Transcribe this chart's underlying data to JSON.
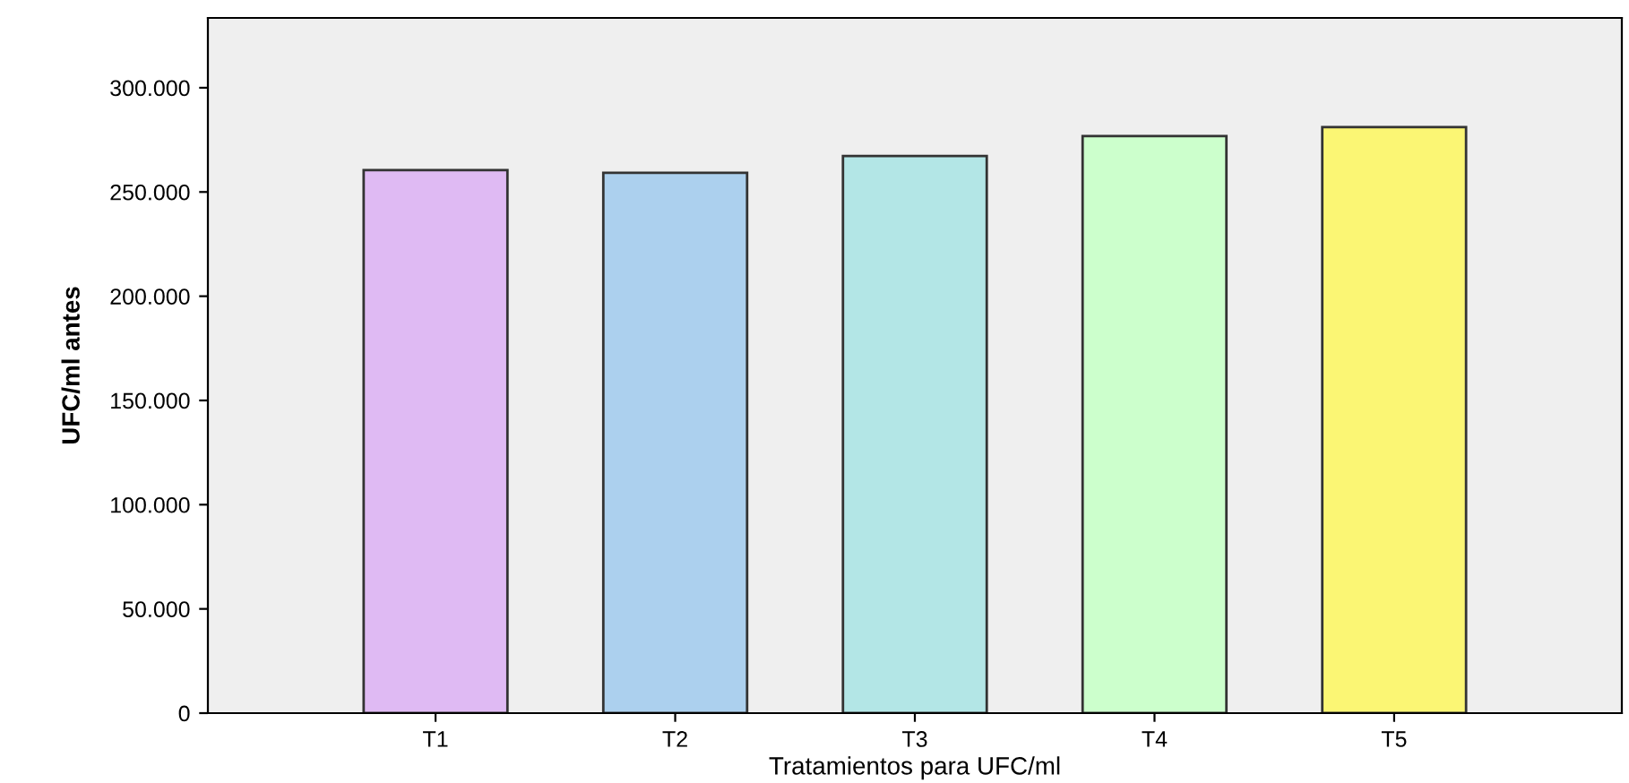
{
  "chart_data": {
    "type": "bar",
    "xlabel": "Tratamientos para UFC/ml",
    "ylabel": "UFC/ml antes",
    "categories": [
      "T1",
      "T2",
      "T3",
      "T4",
      "T5"
    ],
    "values": [
      260500,
      259200,
      267300,
      276800,
      281100
    ],
    "colors": [
      "#dfbaf3",
      "#acd0ee",
      "#b3e6e6",
      "#ccffcc",
      "#fbf674"
    ],
    "ylim": [
      0,
      333500
    ],
    "yticks": [
      0,
      {
        "value": 50000,
        "label": "50.000"
      },
      {
        "value": 100000,
        "label": "100.000"
      },
      {
        "value": 150000,
        "label": "150.000"
      },
      {
        "value": 200000,
        "label": "200.000"
      },
      {
        "value": 250000,
        "label": "250.000"
      },
      {
        "value": 300000,
        "label": "300.000"
      }
    ],
    "grid": false
  }
}
